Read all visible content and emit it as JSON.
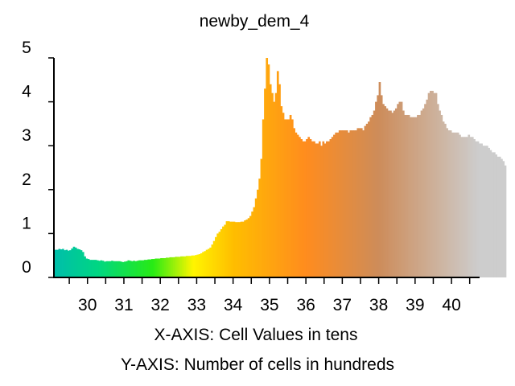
{
  "chart_data": {
    "type": "bar",
    "title": "newby_dem_4",
    "xlabel": "X-AXIS: Cell Values in tens",
    "ylabel": "Y-AXIS: Number of cells in hundreds",
    "xlim": [
      29.1,
      40.75
    ],
    "ylim": [
      0,
      5
    ],
    "x_ticks": [
      "30",
      "31",
      "32",
      "33",
      "34",
      "35",
      "36",
      "37",
      "38",
      "39",
      "40"
    ],
    "y_ticks": [
      "0",
      "1",
      "2",
      "3",
      "4",
      "5"
    ],
    "grid": false,
    "legend": "none",
    "bin_start": 29.1,
    "bin_width": 0.05,
    "counts_hundreds": [
      0.63,
      0.63,
      0.65,
      0.64,
      0.65,
      0.62,
      0.63,
      0.61,
      0.62,
      0.66,
      0.7,
      0.68,
      0.65,
      0.64,
      0.62,
      0.58,
      0.48,
      0.43,
      0.42,
      0.4,
      0.4,
      0.4,
      0.4,
      0.39,
      0.38,
      0.39,
      0.38,
      0.36,
      0.37,
      0.37,
      0.37,
      0.38,
      0.37,
      0.37,
      0.37,
      0.37,
      0.36,
      0.35,
      0.36,
      0.37,
      0.39,
      0.38,
      0.37,
      0.38,
      0.37,
      0.38,
      0.39,
      0.39,
      0.39,
      0.4,
      0.4,
      0.41,
      0.41,
      0.42,
      0.42,
      0.43,
      0.43,
      0.43,
      0.44,
      0.44,
      0.44,
      0.45,
      0.45,
      0.46,
      0.46,
      0.46,
      0.47,
      0.47,
      0.47,
      0.48,
      0.48,
      0.48,
      0.49,
      0.49,
      0.49,
      0.5,
      0.5,
      0.51,
      0.52,
      0.53,
      0.55,
      0.58,
      0.6,
      0.63,
      0.65,
      0.68,
      0.75,
      0.83,
      0.92,
      1.0,
      1.04,
      1.1,
      1.16,
      1.2,
      1.28,
      1.28,
      1.27,
      1.27,
      1.27,
      1.26,
      1.26,
      1.26,
      1.27,
      1.27,
      1.3,
      1.32,
      1.35,
      1.4,
      1.5,
      1.6,
      1.8,
      2.0,
      2.25,
      2.7,
      3.6,
      4.3,
      5.0,
      4.85,
      4.4,
      4.2,
      4.0,
      4.2,
      4.7,
      4.4,
      3.9,
      3.75,
      3.6,
      3.6,
      3.6,
      3.7,
      3.6,
      3.4,
      3.3,
      3.25,
      3.2,
      3.15,
      3.1,
      3.1,
      3.15,
      3.2,
      3.15,
      3.1,
      3.1,
      3.05,
      3.05,
      3.1,
      3.0,
      3.1,
      3.05,
      3.1,
      3.1,
      3.15,
      3.2,
      3.25,
      3.3,
      3.3,
      3.35,
      3.35,
      3.35,
      3.35,
      3.35,
      3.3,
      3.35,
      3.35,
      3.35,
      3.35,
      3.4,
      3.4,
      3.4,
      3.35,
      3.45,
      3.5,
      3.55,
      3.65,
      3.7,
      3.8,
      4.0,
      4.15,
      4.45,
      4.15,
      3.95,
      3.9,
      3.85,
      3.8,
      3.8,
      3.75,
      3.8,
      3.85,
      3.95,
      4.0,
      4.0,
      3.8,
      3.7,
      3.7,
      3.7,
      3.65,
      3.65,
      3.65,
      3.65,
      3.7,
      3.7,
      3.8,
      3.85,
      3.95,
      4.05,
      4.2,
      4.25,
      4.25,
      4.2,
      4.2,
      3.95,
      3.8,
      3.7,
      3.55,
      3.5,
      3.4,
      3.35,
      3.35,
      3.3,
      3.3,
      3.3,
      3.3,
      3.25,
      3.2,
      3.2,
      3.2,
      3.2,
      3.25,
      3.2,
      3.2,
      3.15,
      3.1,
      3.1,
      3.05,
      3.05,
      3.0,
      3.0,
      3.0,
      2.95,
      2.9,
      2.85,
      2.85,
      2.8,
      2.75,
      2.75,
      2.7,
      2.65,
      2.55
    ]
  }
}
